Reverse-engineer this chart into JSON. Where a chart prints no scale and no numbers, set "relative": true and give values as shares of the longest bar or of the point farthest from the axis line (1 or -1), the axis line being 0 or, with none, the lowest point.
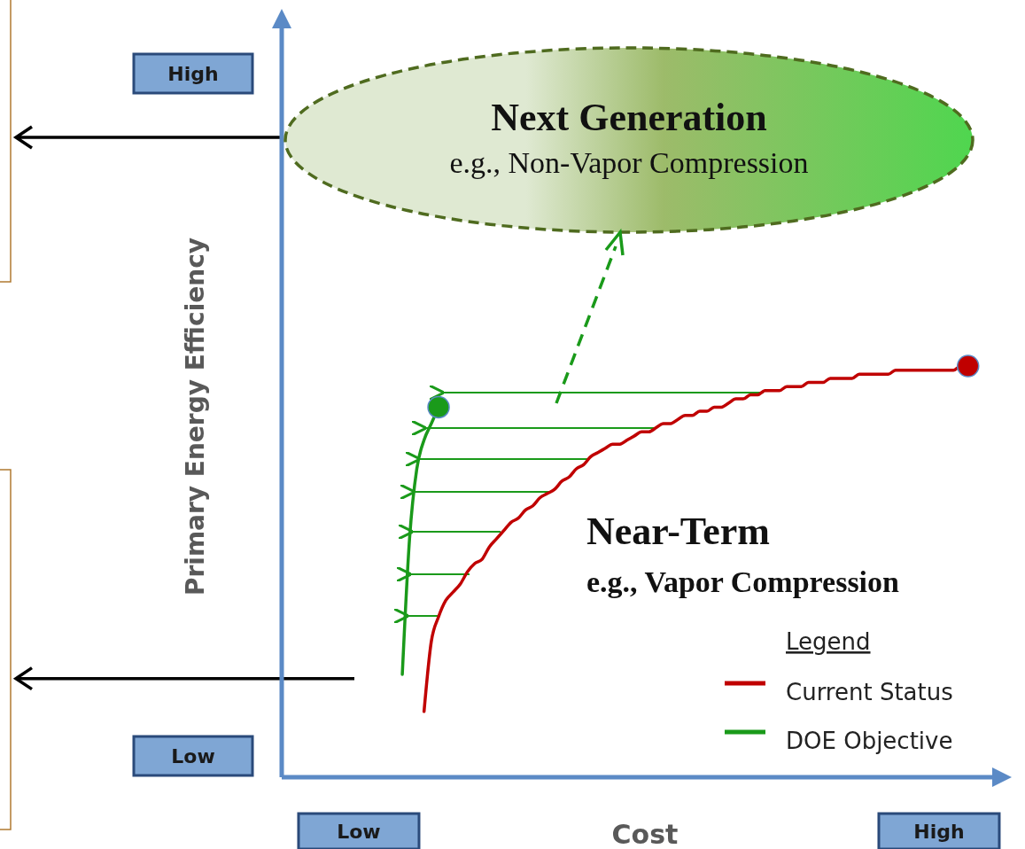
{
  "chart_data": {
    "type": "line",
    "relative": true,
    "xlabel": "Cost",
    "ylabel": "Primary Energy Efficiency",
    "legend_title": "Legend",
    "legend": "bottom right",
    "line_style": "solid",
    "ref_lines": [
      {
        "axis": "y",
        "value": 0.24,
        "color": "#000000"
      }
    ],
    "categories": [
      null,
      null,
      null,
      null,
      null,
      null,
      null,
      null,
      null,
      null,
      "Low",
      null,
      null,
      null,
      null,
      null,
      null,
      null,
      null,
      null,
      null,
      null,
      null,
      null,
      null,
      null,
      null,
      null,
      null,
      null,
      null,
      null,
      null,
      null,
      null,
      null,
      null,
      null,
      null,
      null,
      null,
      null,
      null,
      null,
      null,
      null,
      null,
      null,
      null,
      null,
      null,
      null,
      null,
      null,
      null,
      null,
      null,
      null,
      null,
      null,
      null,
      null,
      null,
      null,
      null,
      null,
      null,
      null,
      null,
      null,
      null,
      null,
      null,
      null,
      null,
      null,
      null,
      null,
      null,
      null,
      null,
      null,
      null,
      null,
      null,
      null,
      null,
      null,
      null,
      null,
      "High",
      null,
      null,
      null,
      null,
      null,
      null,
      null,
      null,
      null
    ],
    "annotations": [
      "Next Generation",
      "e.g., Non-Vapor Compression",
      "Near-Term",
      "e.g., Vapor Compression",
      "High",
      "Low"
    ],
    "series": [
      {
        "name": "Current Status",
        "color": "#c00000",
        "values": [
          null,
          null,
          null,
          null,
          null,
          null,
          null,
          null,
          null,
          null,
          null,
          null,
          null,
          null,
          null,
          null,
          null,
          null,
          null,
          0.16,
          0.33,
          0.39,
          0.43,
          0.45,
          0.47,
          0.5,
          0.52,
          0.53,
          0.56,
          0.58,
          0.6,
          0.62,
          0.63,
          0.65,
          0.66,
          0.68,
          0.69,
          0.7,
          0.72,
          0.73,
          0.75,
          0.76,
          0.78,
          0.79,
          0.8,
          0.81,
          0.81,
          0.82,
          0.83,
          0.84,
          0.84,
          0.85,
          0.86,
          0.86,
          0.87,
          0.88,
          0.88,
          0.89,
          0.89,
          0.9,
          0.9,
          0.91,
          0.92,
          0.92,
          0.93,
          0.93,
          0.94,
          0.94,
          0.94,
          0.95,
          0.95,
          0.95,
          0.96,
          0.96,
          0.96,
          0.97,
          0.97,
          0.97,
          0.97,
          0.98,
          0.98,
          0.98,
          0.98,
          0.98,
          0.99,
          0.99,
          0.99,
          0.99,
          0.99,
          0.99,
          0.99,
          0.99,
          0.99,
          1,
          1,
          null,
          null,
          null,
          null,
          null
        ]
      },
      {
        "name": "DOE Objective",
        "color": "#1a9a1a",
        "values": [
          null,
          null,
          null,
          null,
          null,
          null,
          null,
          null,
          null,
          null,
          null,
          null,
          null,
          null,
          null,
          null,
          0.25,
          0.58,
          0.75,
          0.82,
          0.86,
          0.9,
          null,
          null,
          null,
          null,
          null,
          null,
          null,
          null,
          null,
          null,
          null,
          null,
          null,
          null,
          null,
          null,
          null,
          null,
          null,
          null,
          null,
          null,
          null,
          null,
          null,
          null,
          null,
          null,
          null,
          null,
          null,
          null,
          null,
          null,
          null,
          null,
          null,
          null,
          null,
          null,
          null,
          null,
          null,
          null,
          null,
          null,
          null,
          null,
          null,
          null,
          null,
          null,
          null,
          null,
          null,
          null,
          null,
          null,
          null,
          null,
          null,
          null,
          null,
          null,
          null,
          null,
          null,
          null,
          null,
          null,
          null,
          null,
          null,
          null,
          null,
          null,
          null,
          null
        ]
      },
      {
        "type": "scatter",
        "color": "#c00000",
        "values": [
          null,
          null,
          null,
          null,
          null,
          null,
          null,
          null,
          null,
          null,
          null,
          null,
          null,
          null,
          null,
          null,
          null,
          null,
          null,
          null,
          null,
          null,
          null,
          null,
          null,
          null,
          null,
          null,
          null,
          null,
          null,
          null,
          null,
          null,
          null,
          null,
          null,
          null,
          null,
          null,
          null,
          null,
          null,
          null,
          null,
          null,
          null,
          null,
          null,
          null,
          null,
          null,
          null,
          null,
          null,
          null,
          null,
          null,
          null,
          null,
          null,
          null,
          null,
          null,
          null,
          null,
          null,
          null,
          null,
          null,
          null,
          null,
          null,
          null,
          null,
          null,
          null,
          null,
          null,
          null,
          null,
          null,
          null,
          null,
          null,
          null,
          null,
          null,
          null,
          null,
          null,
          null,
          null,
          null,
          1,
          null,
          null,
          null,
          null,
          null
        ]
      },
      {
        "type": "scatter",
        "color": "#1a9a1a",
        "values": [
          null,
          null,
          null,
          null,
          null,
          null,
          null,
          null,
          null,
          null,
          null,
          null,
          null,
          null,
          null,
          null,
          null,
          null,
          null,
          null,
          null,
          0.9,
          null,
          null,
          null,
          null,
          null,
          null,
          null,
          null,
          null,
          null,
          null,
          null,
          null,
          null,
          null,
          null,
          null,
          null,
          null,
          null,
          null,
          null,
          null,
          null,
          null,
          null,
          null,
          null,
          null,
          null,
          null,
          null,
          null,
          null,
          null,
          null,
          null,
          null,
          null,
          null,
          null,
          null,
          null,
          null,
          null,
          null,
          null,
          null,
          null,
          null,
          null,
          null,
          null,
          null,
          null,
          null,
          null,
          null,
          null,
          null,
          null,
          null,
          null,
          null,
          null,
          null,
          null,
          null,
          null,
          null,
          null,
          null,
          null,
          null,
          null,
          null,
          null,
          null
        ]
      }
    ]
  }
}
